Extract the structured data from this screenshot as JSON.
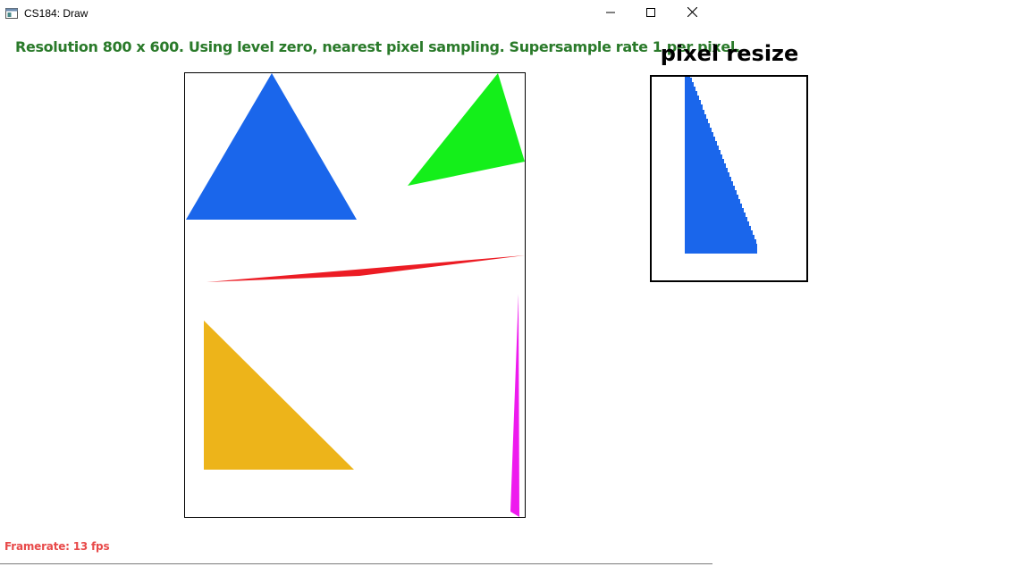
{
  "window": {
    "title": "CS184: Draw",
    "app_icon": "window-app-icon",
    "controls": {
      "minimize_icon": "minimize-icon",
      "maximize_icon": "maximize-icon",
      "close_icon": "close-icon"
    }
  },
  "info": {
    "text": "Resolution 800 x 600. Using level zero, nearest pixel sampling. Supersample rate 1 per pixel."
  },
  "status": {
    "framerate": "Framerate: 13 fps"
  },
  "zoom": {
    "title": "pixel resize"
  },
  "colors": {
    "info_text": "#2a7a2a",
    "framerate_text": "#e84a4a",
    "triangle_blue": "#1a66eb",
    "triangle_green": "#14ef1a",
    "triangle_red": "#ec1c24",
    "triangle_orange": "#edb41a",
    "triangle_magenta": "#ee1aee"
  }
}
